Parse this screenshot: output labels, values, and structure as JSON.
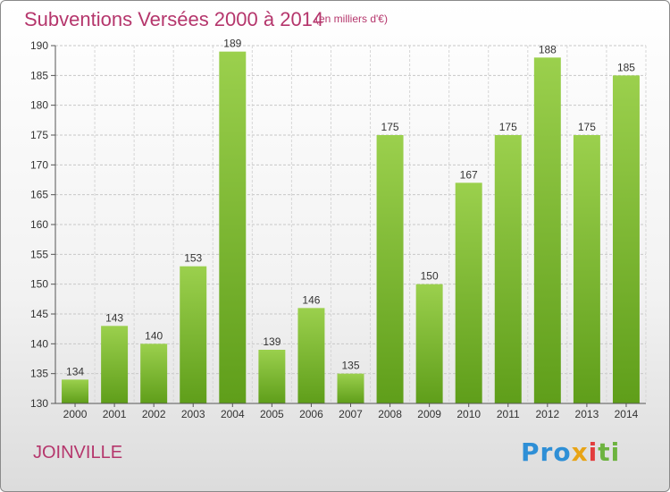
{
  "header": {
    "title": "Subventions Versées 2000 à 2014",
    "subtitle": "(en milliers d'€)"
  },
  "footer": {
    "city": "JOINVILLE",
    "brand": "Proxiti"
  },
  "colors": {
    "bar_top": "#9bd04d",
    "bar_bottom": "#5f9e1a",
    "accent": "#b5366c"
  },
  "chart_data": {
    "type": "bar",
    "categories": [
      "2000",
      "2001",
      "2002",
      "2003",
      "2004",
      "2005",
      "2006",
      "2007",
      "2008",
      "2009",
      "2010",
      "2011",
      "2012",
      "2013",
      "2014"
    ],
    "values": [
      134,
      143,
      140,
      153,
      189,
      139,
      146,
      135,
      175,
      150,
      167,
      175,
      188,
      175,
      185
    ],
    "title": "Subventions Versées 2000 à 2014",
    "subtitle": "(en milliers d'€)",
    "ylim": [
      130,
      190
    ],
    "yticks": [
      130,
      135,
      140,
      145,
      150,
      155,
      160,
      165,
      170,
      175,
      180,
      185,
      190
    ],
    "grid": true,
    "legend": "none"
  }
}
